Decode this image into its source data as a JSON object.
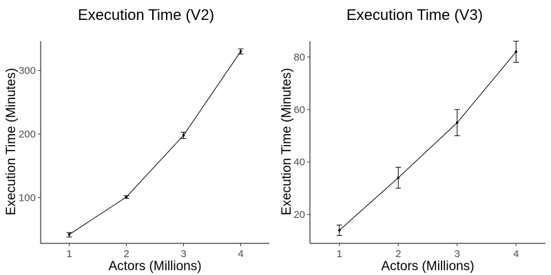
{
  "chart_data": [
    {
      "type": "line",
      "title": "Execution Time (V2)",
      "xlabel": "Actors (Millions)",
      "ylabel": "Execution Time (Minutes)",
      "x": [
        1,
        2,
        3,
        4
      ],
      "series": [
        {
          "values": [
            42,
            101,
            198,
            330
          ],
          "error_low": [
            38,
            99,
            193,
            326
          ],
          "error_high": [
            45,
            103,
            203,
            334
          ]
        }
      ],
      "x_ticks": [
        "1",
        "2",
        "3",
        "4"
      ],
      "y_ticks": [
        "100",
        "200",
        "300"
      ],
      "xlim": [
        0.5,
        4.5
      ],
      "ylim": [
        28,
        346
      ],
      "grid": false,
      "legend": "none",
      "colors": {
        "line": "#000000",
        "axis": "#000000",
        "tick_text": "#4d4d4d"
      }
    },
    {
      "type": "line",
      "title": "Execution Time (V3)",
      "xlabel": "Actors (Millions)",
      "ylabel": "Execution Time (Minutes)",
      "x": [
        1,
        2,
        3,
        4
      ],
      "series": [
        {
          "values": [
            14,
            34,
            55,
            82
          ],
          "error_low": [
            12,
            30,
            50,
            78
          ],
          "error_high": [
            16,
            38,
            60,
            86
          ]
        }
      ],
      "x_ticks": [
        "1",
        "2",
        "3",
        "4"
      ],
      "y_ticks": [
        "20",
        "40",
        "60",
        "80"
      ],
      "xlim": [
        0.5,
        4.5
      ],
      "ylim": [
        9,
        86
      ],
      "grid": false,
      "legend": "none",
      "colors": {
        "line": "#000000",
        "axis": "#000000",
        "tick_text": "#4d4d4d"
      }
    }
  ]
}
